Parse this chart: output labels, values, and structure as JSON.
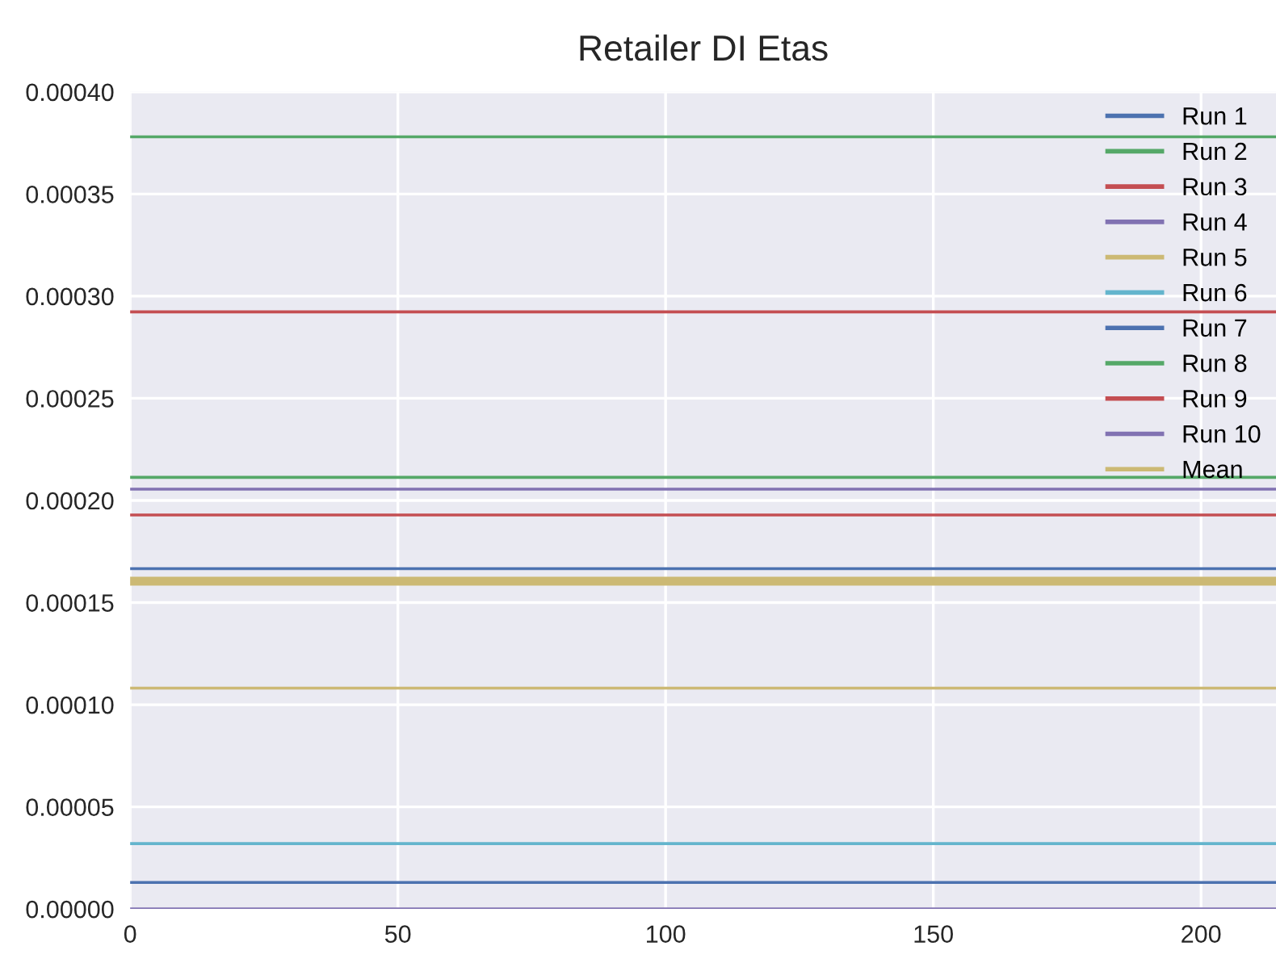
{
  "chart_data": {
    "type": "line",
    "title": "Retailer DI Etas",
    "x": [
      0,
      214
    ],
    "series": [
      {
        "name": "Run 1",
        "color": "#4c72b0",
        "values": [
          0.0001666,
          0.0001666
        ]
      },
      {
        "name": "Run 2",
        "color": "#55a868",
        "values": [
          0.000378,
          0.000378
        ]
      },
      {
        "name": "Run 3",
        "color": "#c44e52",
        "values": [
          0.0002923,
          0.0002923
        ]
      },
      {
        "name": "Run 4",
        "color": "#8172b2",
        "values": [
          0.0002055,
          0.0002055
        ]
      },
      {
        "name": "Run 5",
        "color": "#ccb974",
        "values": [
          0.0001081,
          0.0001081
        ]
      },
      {
        "name": "Run 6",
        "color": "#64b5cd",
        "values": [
          3.2e-05,
          3.2e-05
        ]
      },
      {
        "name": "Run 7",
        "color": "#4c72b0",
        "values": [
          1.3e-05,
          1.3e-05
        ]
      },
      {
        "name": "Run 8",
        "color": "#55a868",
        "values": [
          0.0002113,
          0.0002113
        ]
      },
      {
        "name": "Run 9",
        "color": "#c44e52",
        "values": [
          0.0001929,
          0.0001929
        ]
      },
      {
        "name": "Run 10",
        "color": "#8172b2",
        "values": [
          0,
          0
        ]
      },
      {
        "name": "Mean",
        "color": "#ccb974",
        "values": [
          0.0001605,
          0.0001605
        ]
      }
    ],
    "xlim": [
      0,
      214
    ],
    "xticks": [
      0,
      50,
      100,
      150,
      200
    ],
    "ylim": [
      0,
      0.0004
    ],
    "yticks": [
      {
        "value": 0,
        "label": "0.00000"
      },
      {
        "value": 5e-05,
        "label": "0.00005"
      },
      {
        "value": 0.0001,
        "label": "0.00010"
      },
      {
        "value": 0.00015,
        "label": "0.00015"
      },
      {
        "value": 0.0002,
        "label": "0.00020"
      },
      {
        "value": 0.00025,
        "label": "0.00025"
      },
      {
        "value": 0.0003,
        "label": "0.00030"
      },
      {
        "value": 0.00035,
        "label": "0.00035"
      },
      {
        "value": 0.0004,
        "label": "0.00040"
      }
    ],
    "grid": true,
    "legend": "top right",
    "line_style": "solid",
    "marker": "none"
  }
}
